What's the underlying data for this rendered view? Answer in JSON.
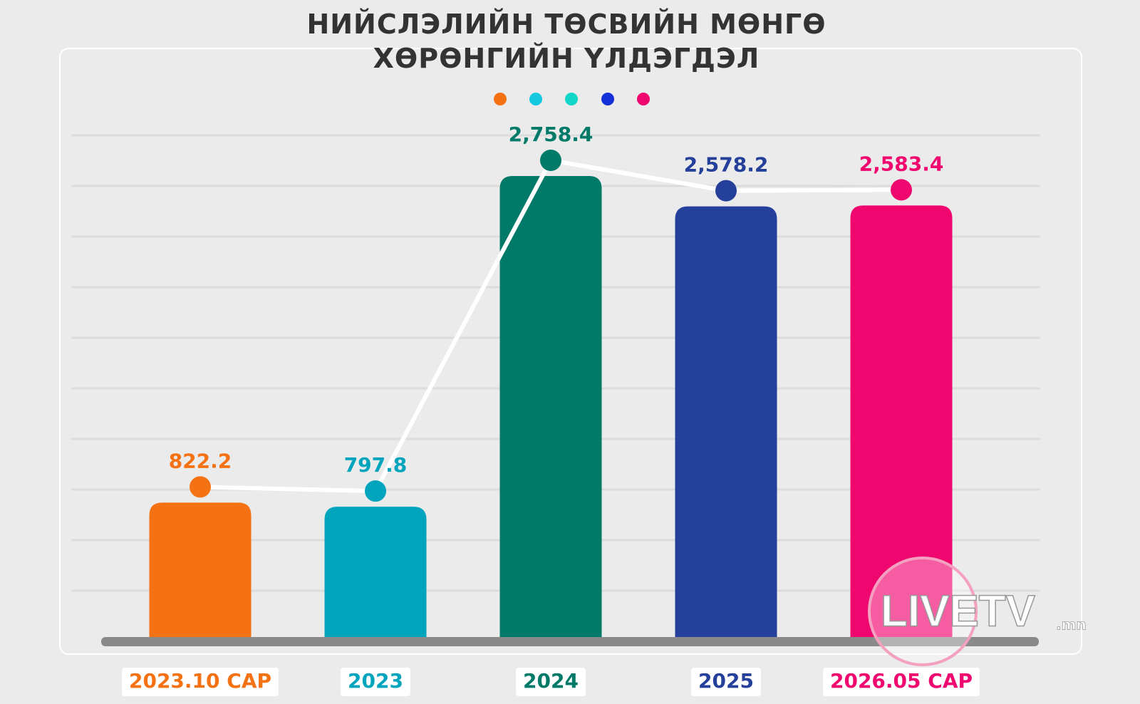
{
  "chart_data": {
    "type": "bar",
    "title": "НИЙСЛЭЛИЙН ТӨСВИЙН МӨНГӨ ХӨРӨНГИЙН ҮЛДЭГДЭЛ",
    "categories": [
      "2023.10 САР",
      "2023",
      "2024",
      "2025",
      "2026.05 САР"
    ],
    "values": [
      822.2,
      797.8,
      2758.4,
      2578.2,
      2583.4
    ],
    "value_labels": [
      "822.2",
      "797.8",
      "2,758.4",
      "2,578.2",
      "2,583.4"
    ],
    "colors": [
      "#f57214",
      "#00a5bd",
      "#007a68",
      "#25409a",
      "#f0066f"
    ],
    "line_color": "#ffffff"
  },
  "logo": {
    "text": "LIVETV",
    "suffix": ".mn"
  }
}
